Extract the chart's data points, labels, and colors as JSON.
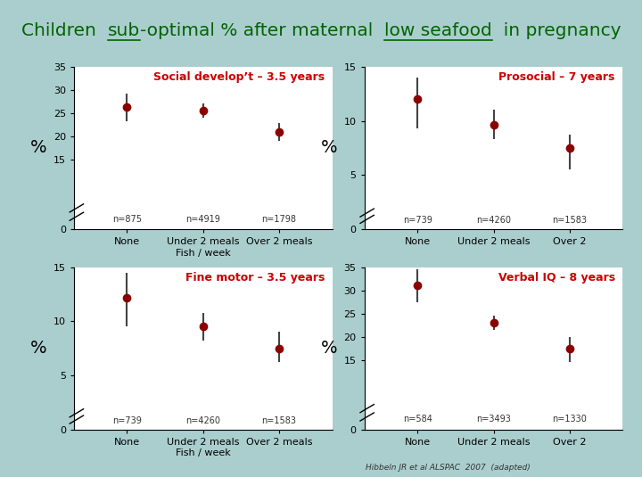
{
  "title_parts": [
    {
      "text": "Children  ",
      "underline": false
    },
    {
      "text": "sub",
      "underline": true
    },
    {
      "text": "-optimal % after maternal  ",
      "underline": false
    },
    {
      "text": "low seafood",
      "underline": true
    },
    {
      "text": "  in pregnancy",
      "underline": false
    }
  ],
  "bg_color": "#aacece",
  "panel_bg": "#ffffff",
  "dot_color": "#8b0000",
  "err_color": "#444444",
  "title_color": "#006400",
  "panel_title_color": "#cc0000",
  "citation": "Hibbeln JR et al ALSPAC  2007  (adapted)",
  "panels": [
    {
      "title": "Social develop’t – 3.5 years",
      "ylim": [
        0,
        35
      ],
      "yticks": [
        0,
        15,
        20,
        25,
        30,
        35
      ],
      "ytick_labels": [
        "0",
        "15",
        "20",
        "25",
        "30",
        "35"
      ],
      "break_low": 0,
      "break_high": 15,
      "categories": [
        "None",
        "Under 2 meals",
        "Over 2 meals"
      ],
      "ns": [
        "n=875",
        "n=4919",
        "n=1798"
      ],
      "values": [
        26.3,
        25.5,
        21.0
      ],
      "ci_low": [
        23.2,
        24.0,
        19.0
      ],
      "ci_high": [
        29.3,
        27.0,
        22.8
      ],
      "xlabel": "Fish / week",
      "show_ylabel": true,
      "row": 0,
      "col": 0
    },
    {
      "title": "Prosocial – 7 years",
      "ylim": [
        0,
        15
      ],
      "yticks": [
        0,
        5,
        10,
        15
      ],
      "ytick_labels": [
        "0",
        "5",
        "10",
        "15"
      ],
      "break_low": 0,
      "break_high": 5,
      "categories": [
        "None",
        "Under 2 meals",
        "Over 2"
      ],
      "ns": [
        "n=739",
        "n=4260",
        "n=1583"
      ],
      "values": [
        12.0,
        9.6,
        7.5
      ],
      "ci_low": [
        9.3,
        8.3,
        5.5
      ],
      "ci_high": [
        14.0,
        11.0,
        8.7
      ],
      "xlabel": "",
      "show_ylabel": true,
      "row": 0,
      "col": 1
    },
    {
      "title": "Fine motor – 3.5 years",
      "ylim": [
        0,
        15
      ],
      "yticks": [
        0,
        5,
        10,
        15
      ],
      "ytick_labels": [
        "0",
        "5",
        "10",
        "15"
      ],
      "break_low": 0,
      "break_high": 5,
      "categories": [
        "None",
        "Under 2 meals",
        "Over 2 meals"
      ],
      "ns": [
        "n=739",
        "n=4260",
        "n=1583"
      ],
      "values": [
        12.2,
        9.5,
        7.5
      ],
      "ci_low": [
        9.5,
        8.2,
        6.2
      ],
      "ci_high": [
        14.5,
        10.8,
        9.0
      ],
      "xlabel": "Fish / week",
      "show_ylabel": true,
      "row": 1,
      "col": 0
    },
    {
      "title": "Verbal IQ – 8 years",
      "ylim": [
        0,
        35
      ],
      "yticks": [
        0,
        15,
        20,
        25,
        30,
        35
      ],
      "ytick_labels": [
        "0",
        "15",
        "20",
        "25",
        "30",
        "35"
      ],
      "break_low": 0,
      "break_high": 15,
      "categories": [
        "None",
        "Under 2 meals",
        "Over 2"
      ],
      "ns": [
        "n=584",
        "n=3493",
        "n=1330"
      ],
      "values": [
        31.0,
        23.0,
        17.5
      ],
      "ci_low": [
        27.5,
        21.5,
        14.5
      ],
      "ci_high": [
        34.5,
        24.5,
        20.0
      ],
      "xlabel": "",
      "show_ylabel": true,
      "row": 1,
      "col": 1
    }
  ]
}
